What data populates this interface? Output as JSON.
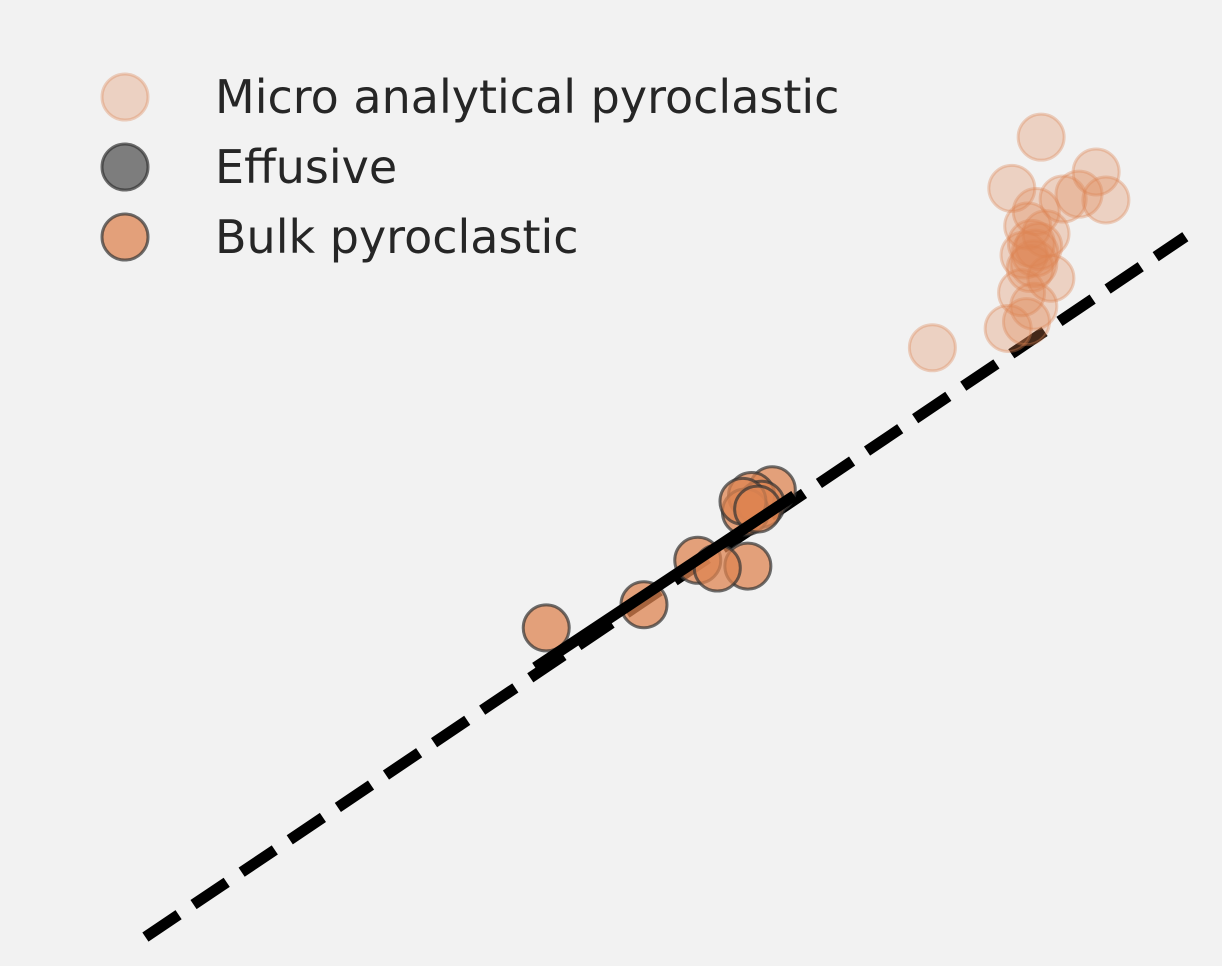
{
  "chart_data": {
    "type": "scatter",
    "xlim": [
      0,
      1
    ],
    "ylim": [
      0,
      1
    ],
    "grid": false,
    "legend_placement": "top-left",
    "series": [
      {
        "name": "Micro analytical pyroclastic",
        "color": "#dd8452",
        "fill_opacity": 0.3,
        "edge": "same-as-fill",
        "points": [
          [
            0.852,
            0.858
          ],
          [
            0.828,
            0.805
          ],
          [
            0.897,
            0.822
          ],
          [
            0.905,
            0.793
          ],
          [
            0.883,
            0.799
          ],
          [
            0.87,
            0.794
          ],
          [
            0.848,
            0.781
          ],
          [
            0.841,
            0.766
          ],
          [
            0.856,
            0.758
          ],
          [
            0.844,
            0.748
          ],
          [
            0.838,
            0.736
          ],
          [
            0.846,
            0.727
          ],
          [
            0.86,
            0.712
          ],
          [
            0.836,
            0.697
          ],
          [
            0.846,
            0.683
          ],
          [
            0.84,
            0.667
          ],
          [
            0.847,
            0.738
          ],
          [
            0.825,
            0.66
          ],
          [
            0.843,
            0.722
          ],
          [
            0.85,
            0.745
          ],
          [
            0.763,
            0.64
          ]
        ]
      },
      {
        "name": "Effusive",
        "color": "#555555",
        "fill_opacity": 0.75,
        "edge": "#333333",
        "points": []
      },
      {
        "name": "Bulk pyroclastic",
        "color": "#dd8452",
        "fill_opacity": 0.75,
        "edge": "#333333",
        "points": [
          [
            0.632,
            0.493
          ],
          [
            0.615,
            0.487
          ],
          [
            0.623,
            0.478
          ],
          [
            0.61,
            0.47
          ],
          [
            0.608,
            0.481
          ],
          [
            0.62,
            0.473
          ],
          [
            0.612,
            0.414
          ],
          [
            0.571,
            0.42
          ],
          [
            0.587,
            0.412
          ],
          [
            0.527,
            0.374
          ],
          [
            0.447,
            0.35
          ]
        ]
      }
    ],
    "lines": [
      {
        "style": "dashed",
        "color": "#000000",
        "from": [
          0.119,
          0.03
        ],
        "to": [
          0.97,
          0.755
        ]
      },
      {
        "style": "solid",
        "color": "#000000",
        "from": [
          0.438,
          0.309
        ],
        "to": [
          0.65,
          0.487
        ]
      }
    ]
  }
}
